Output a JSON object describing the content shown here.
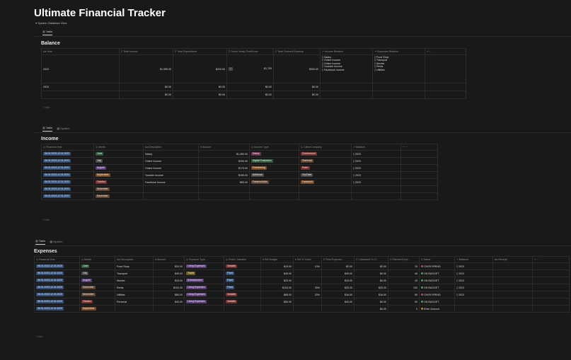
{
  "page_title": "Ultimate Financial Tracker",
  "system_view": "System Database View",
  "balance": {
    "tab": "Table",
    "title": "Balance",
    "headers": [
      "Year",
      "Total Income",
      "Total Expenditure",
      "Gross Yearly Profit/Loss",
      "Total Claimed Expense",
      "Income Relation",
      "Expenses Relation"
    ],
    "rows": [
      {
        "year": "2023",
        "income": "$1,995.00",
        "expend": "$200.00",
        "flag": "~",
        "profit": "$1,705",
        "claimed": "$300.00",
        "income_rel": [
          "Salary",
          "Online Income",
          "Online Income",
          "Youtube Income",
          "Facebook Income"
        ],
        "exp_rel": [
          "Food Shop",
          "Transport",
          "Movies",
          "Rents",
          "Utilities"
        ]
      },
      {
        "year": "2024",
        "income": "$0.00",
        "expend": "$0.00",
        "flag": "",
        "profit": "$0.00",
        "claimed": "$0.00",
        "income_rel": [],
        "exp_rel": []
      },
      {
        "year": "",
        "income": "$0.00",
        "expend": "$0.00",
        "flag": "",
        "profit": "$0.00",
        "claimed": "$0.00",
        "income_rel": [],
        "exp_rel": []
      }
    ],
    "new_label": "+ New"
  },
  "income": {
    "tabs": [
      "Table",
      "System"
    ],
    "title": "Income",
    "headers": [
      "Financial Year",
      "Month",
      "Description",
      "Amount",
      "Income Type",
      "Client/Company",
      "Balance"
    ],
    "rows": [
      {
        "fy": "06.01.2023-12.31.2022",
        "month": "June",
        "desc": "Salary",
        "amount": "$1,350.00",
        "type": "Salary",
        "client": "Government",
        "bal": "2023"
      },
      {
        "fy": "06.01.2023-12.31.2022",
        "month": "July",
        "desc": "Online Income",
        "amount": "$250.00",
        "type": "Digital Production",
        "client": "Gumroad",
        "bal": "2023"
      },
      {
        "fy": "06.01.2023-12.31.2022",
        "month": "August",
        "desc": "Online Income",
        "amount": "$175.00",
        "type": "Freelancing",
        "client": "Fiverr",
        "bal": "2023"
      },
      {
        "fy": "06.01.2023-12.31.2022",
        "month": "September",
        "desc": "Youtube Income",
        "amount": "$165.00",
        "type": "AdSense",
        "client": "YouTube",
        "bal": "2023"
      },
      {
        "fy": "06.01.2023-12.31.2022",
        "month": "October",
        "desc": "Facebook Income",
        "amount": "$55.00",
        "type": "FacebookAds",
        "client": "Facebook",
        "bal": "2023"
      },
      {
        "fy": "06.01.2023-12.31.2022",
        "month": "November",
        "desc": "",
        "amount": "",
        "type": "",
        "client": "",
        "bal": ""
      },
      {
        "fy": "06.01.2023-12.31.2022",
        "month": "December",
        "desc": "",
        "amount": "",
        "type": "",
        "client": "",
        "bal": ""
      }
    ],
    "new_label": "+ New"
  },
  "expenses": {
    "tabs": [
      "Table",
      "System"
    ],
    "title": "Expenses",
    "headers": [
      "Financial Year",
      "Month",
      "Description",
      "Amount",
      "Expense Type",
      "Fixed / Variable",
      "Set Budget",
      "Set % Claim",
      "Real Expense...",
      "Calculated % Cl...",
      "Planned Expe...",
      "Status",
      "Balance",
      "Receipt"
    ],
    "rows": [
      {
        "fy": "06.01.2023-12.31.2023",
        "month": "June",
        "desc": "Food Shop",
        "amount": "$20.00",
        "type": "Living Expenses",
        "fv": "Variable",
        "budget": "$15.00",
        "claim": "10%",
        "real": "$2.00",
        "calc": "$2.00",
        "planned": "15",
        "status": "OVER SPEND",
        "bal": "2023"
      },
      {
        "fy": "06.01.2023-12.31.2023",
        "month": "July",
        "desc": "Transport",
        "amount": "$45.00",
        "type": "Travel",
        "fv": "Fixed",
        "budget": "$45.00",
        "claim": "",
        "real": "$45.00",
        "calc": "$0.00",
        "planned": "45",
        "status": "ON BUDGET",
        "bal": "2023"
      },
      {
        "fy": "06.01.2023-12.31.2023",
        "month": "August",
        "desc": "Movies",
        "amount": "$15.00",
        "type": "Entertainment",
        "fv": "Fixed",
        "budget": "$20.00",
        "claim": "",
        "real": "$15.00",
        "calc": "$0.00",
        "planned": "15",
        "status": "ON BUDGET",
        "bal": "2023"
      },
      {
        "fy": "06.01.2023-12.31.2023",
        "month": "December",
        "desc": "Rents",
        "amount": "$100.00",
        "type": "Living Expenses",
        "fv": "Fixed",
        "budget": "$100.00",
        "claim": "25%",
        "real": "$25.00",
        "calc": "$25.00",
        "planned": "100",
        "status": "ON BUDGET",
        "bal": "2023"
      },
      {
        "fy": "06.01.2023-12.31.2023",
        "month": "November",
        "desc": "Utilities",
        "amount": "$80.00",
        "type": "Living Expenses",
        "fv": "Variable",
        "budget": "$65.00",
        "claim": "20%",
        "real": "$16.00",
        "calc": "$16.00",
        "planned": "65",
        "status": "OVER SPEND",
        "bal": "2023"
      },
      {
        "fy": "06.01.2023-12.31.2023",
        "month": "October",
        "desc": "Personal",
        "amount": "$40.00",
        "type": "Living Expenses",
        "fv": "Variable",
        "budget": "$50.00",
        "claim": "",
        "real": "$40.00",
        "calc": "$0.00",
        "planned": "50",
        "status": "ON BUDGET",
        "bal": ""
      },
      {
        "fy": "06.01.2023-12.31.2023",
        "month": "September",
        "desc": "",
        "amount": "",
        "type": "",
        "fv": "",
        "budget": "",
        "claim": "",
        "real": "",
        "calc": "$0.00",
        "planned": "0",
        "status": "Enter Amount",
        "bal": ""
      }
    ],
    "new_label": "+ New"
  },
  "colors": {
    "background": "#191919",
    "text": "#d4d4d4",
    "grid": "#2c2c2c"
  }
}
